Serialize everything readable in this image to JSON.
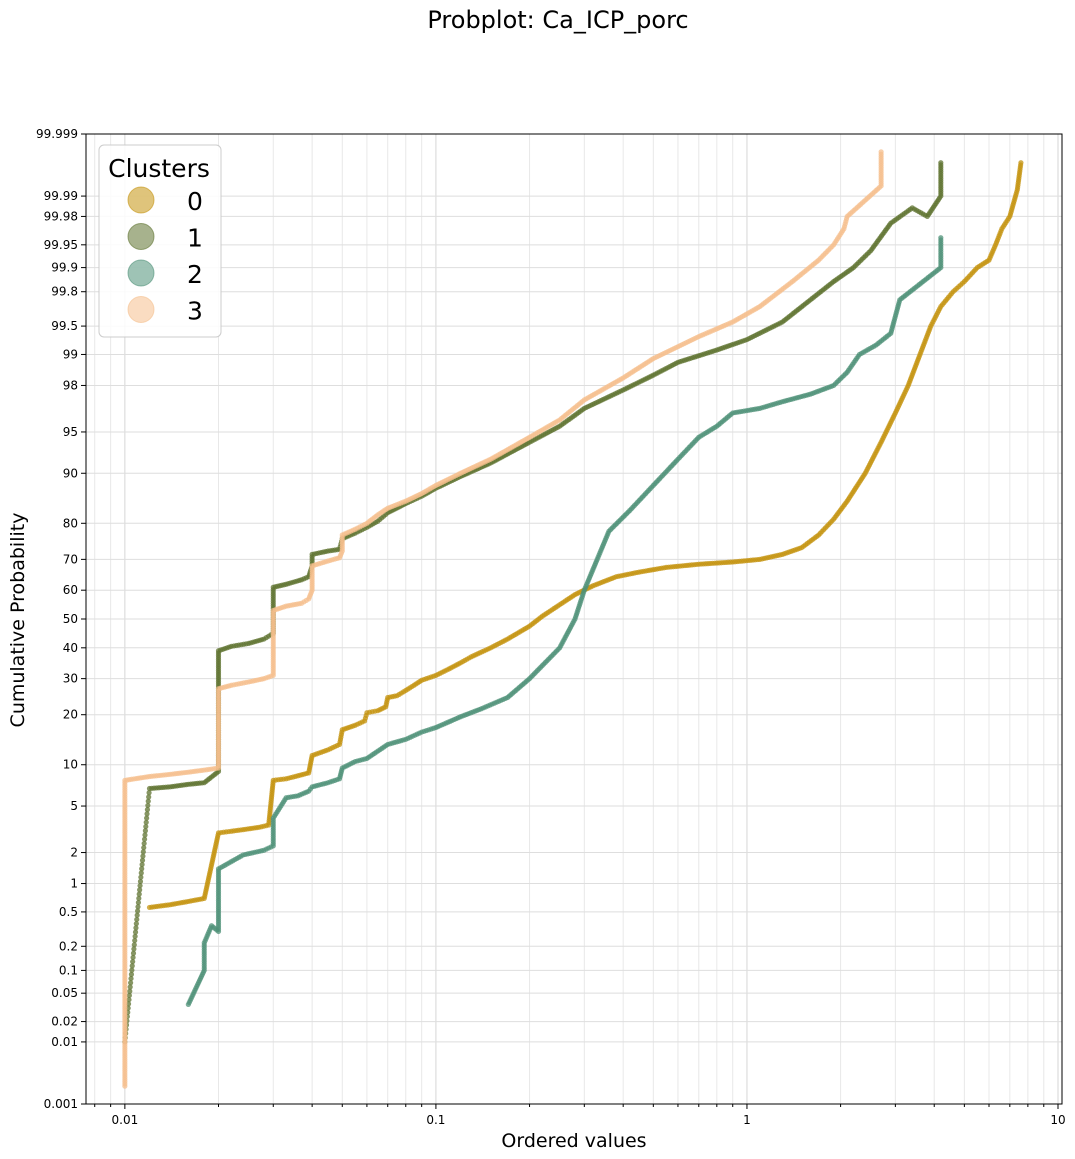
{
  "chart_data": {
    "type": "scatter",
    "title": "Probplot: Ca_ICP_porc",
    "xlabel": "Ordered values",
    "ylabel": "Cumulative Probability",
    "x_scale": "log",
    "y_scale": "probability",
    "xlim": [
      0.0075,
      10.3
    ],
    "ylim": [
      0.001,
      99.999
    ],
    "x_ticks": [
      {
        "value": 0.01,
        "label": "0.01"
      },
      {
        "value": 0.1,
        "label": "0.1"
      },
      {
        "value": 1,
        "label": "1"
      },
      {
        "value": 10,
        "label": "10"
      }
    ],
    "y_ticks": [
      {
        "value": 0.001,
        "label": "0.001"
      },
      {
        "value": 0.01,
        "label": "0.01"
      },
      {
        "value": 0.02,
        "label": "0.02"
      },
      {
        "value": 0.05,
        "label": "0.05"
      },
      {
        "value": 0.1,
        "label": "0.1"
      },
      {
        "value": 0.2,
        "label": "0.2"
      },
      {
        "value": 0.5,
        "label": "0.5"
      },
      {
        "value": 1,
        "label": "1"
      },
      {
        "value": 2,
        "label": "2"
      },
      {
        "value": 5,
        "label": "5"
      },
      {
        "value": 10,
        "label": "10"
      },
      {
        "value": 20,
        "label": "20"
      },
      {
        "value": 30,
        "label": "30"
      },
      {
        "value": 40,
        "label": "40"
      },
      {
        "value": 50,
        "label": "50"
      },
      {
        "value": 60,
        "label": "60"
      },
      {
        "value": 70,
        "label": "70"
      },
      {
        "value": 80,
        "label": "80"
      },
      {
        "value": 90,
        "label": "90"
      },
      {
        "value": 95,
        "label": "95"
      },
      {
        "value": 98,
        "label": "98"
      },
      {
        "value": 99,
        "label": "99"
      },
      {
        "value": 99.5,
        "label": "99.5"
      },
      {
        "value": 99.8,
        "label": "99.8"
      },
      {
        "value": 99.9,
        "label": "99.9"
      },
      {
        "value": 99.95,
        "label": "99.95"
      },
      {
        "value": 99.98,
        "label": "99.98"
      },
      {
        "value": 99.99,
        "label": "99.99"
      },
      {
        "value": 99.999,
        "label": "99.999"
      }
    ],
    "grid": true,
    "legend": {
      "title": "Clusters",
      "position": "top-left"
    },
    "series": [
      {
        "name": "0",
        "color": "#c4930f",
        "points": [
          [
            0.012,
            0.56
          ],
          [
            0.014,
            0.6
          ],
          [
            0.016,
            0.65
          ],
          [
            0.018,
            0.7
          ],
          [
            0.02,
            3.0
          ],
          [
            0.022,
            3.1
          ],
          [
            0.024,
            3.2
          ],
          [
            0.027,
            3.35
          ],
          [
            0.029,
            3.5
          ],
          [
            0.03,
            7.8
          ],
          [
            0.033,
            8.0
          ],
          [
            0.036,
            8.4
          ],
          [
            0.039,
            8.8
          ],
          [
            0.04,
            11.5
          ],
          [
            0.045,
            12.5
          ],
          [
            0.049,
            13.5
          ],
          [
            0.05,
            16.5
          ],
          [
            0.055,
            17.5
          ],
          [
            0.059,
            18.5
          ],
          [
            0.06,
            20.5
          ],
          [
            0.065,
            21.0
          ],
          [
            0.069,
            22.0
          ],
          [
            0.07,
            24.5
          ],
          [
            0.075,
            25.0
          ],
          [
            0.08,
            26.5
          ],
          [
            0.085,
            28.0
          ],
          [
            0.09,
            29.5
          ],
          [
            0.1,
            31.0
          ],
          [
            0.11,
            33.0
          ],
          [
            0.12,
            35.0
          ],
          [
            0.13,
            37.0
          ],
          [
            0.15,
            40.0
          ],
          [
            0.17,
            43.0
          ],
          [
            0.2,
            47.5
          ],
          [
            0.22,
            51.0
          ],
          [
            0.25,
            55.0
          ],
          [
            0.28,
            58.5
          ],
          [
            0.32,
            61.5
          ],
          [
            0.38,
            64.5
          ],
          [
            0.45,
            66.0
          ],
          [
            0.55,
            67.5
          ],
          [
            0.7,
            68.5
          ],
          [
            0.9,
            69.2
          ],
          [
            1.1,
            70.0
          ],
          [
            1.3,
            71.5
          ],
          [
            1.5,
            73.5
          ],
          [
            1.7,
            77.0
          ],
          [
            1.9,
            81.0
          ],
          [
            2.1,
            85.0
          ],
          [
            2.4,
            90.0
          ],
          [
            2.7,
            94.0
          ],
          [
            3.0,
            96.5
          ],
          [
            3.3,
            98.0
          ],
          [
            3.6,
            99.0
          ],
          [
            3.9,
            99.5
          ],
          [
            4.2,
            99.7
          ],
          [
            4.6,
            99.8
          ],
          [
            5.0,
            99.85
          ],
          [
            5.5,
            99.9
          ],
          [
            6.0,
            99.92
          ],
          [
            6.3,
            99.95
          ],
          [
            6.6,
            99.97
          ],
          [
            7.0,
            99.98
          ],
          [
            7.4,
            99.992
          ],
          [
            7.6,
            99.997
          ]
        ]
      },
      {
        "name": "1",
        "color": "#5f7330",
        "points": [
          [
            0.01,
            0.01
          ],
          [
            0.012,
            6.8
          ],
          [
            0.014,
            7.0
          ],
          [
            0.016,
            7.3
          ],
          [
            0.018,
            7.5
          ],
          [
            0.02,
            9.0
          ],
          [
            0.02,
            20.0
          ],
          [
            0.02,
            39.0
          ],
          [
            0.022,
            40.5
          ],
          [
            0.025,
            41.5
          ],
          [
            0.028,
            43.0
          ],
          [
            0.03,
            45.0
          ],
          [
            0.03,
            53.0
          ],
          [
            0.03,
            61.0
          ],
          [
            0.033,
            62.0
          ],
          [
            0.037,
            63.5
          ],
          [
            0.039,
            64.5
          ],
          [
            0.04,
            68.0
          ],
          [
            0.04,
            71.5
          ],
          [
            0.045,
            72.5
          ],
          [
            0.049,
            73.0
          ],
          [
            0.05,
            76.0
          ],
          [
            0.055,
            77.5
          ],
          [
            0.06,
            79.0
          ],
          [
            0.065,
            80.5
          ],
          [
            0.07,
            82.5
          ],
          [
            0.08,
            84.5
          ],
          [
            0.09,
            86.0
          ],
          [
            0.1,
            87.5
          ],
          [
            0.12,
            89.5
          ],
          [
            0.15,
            91.5
          ],
          [
            0.2,
            94.0
          ],
          [
            0.25,
            95.5
          ],
          [
            0.3,
            96.8
          ],
          [
            0.4,
            97.8
          ],
          [
            0.5,
            98.4
          ],
          [
            0.6,
            98.8
          ],
          [
            0.8,
            99.1
          ],
          [
            1.0,
            99.3
          ],
          [
            1.3,
            99.55
          ],
          [
            1.6,
            99.75
          ],
          [
            1.9,
            99.85
          ],
          [
            2.2,
            99.9
          ],
          [
            2.5,
            99.94
          ],
          [
            2.9,
            99.975
          ],
          [
            3.4,
            99.985
          ],
          [
            3.8,
            99.98
          ],
          [
            4.2,
            99.99
          ],
          [
            4.2,
            99.997
          ]
        ]
      },
      {
        "name": "2",
        "color": "#4f9178",
        "points": [
          [
            0.016,
            0.035
          ],
          [
            0.018,
            0.1
          ],
          [
            0.018,
            0.16
          ],
          [
            0.018,
            0.22
          ],
          [
            0.019,
            0.35
          ],
          [
            0.02,
            0.3
          ],
          [
            0.02,
            0.7
          ],
          [
            0.02,
            1.4
          ],
          [
            0.024,
            1.9
          ],
          [
            0.028,
            2.1
          ],
          [
            0.03,
            2.3
          ],
          [
            0.03,
            4.0
          ],
          [
            0.033,
            5.8
          ],
          [
            0.036,
            6.0
          ],
          [
            0.039,
            6.5
          ],
          [
            0.04,
            7.0
          ],
          [
            0.045,
            7.5
          ],
          [
            0.049,
            8.0
          ],
          [
            0.05,
            9.5
          ],
          [
            0.055,
            10.5
          ],
          [
            0.06,
            11.0
          ],
          [
            0.07,
            13.5
          ],
          [
            0.08,
            14.5
          ],
          [
            0.09,
            16.0
          ],
          [
            0.1,
            17.0
          ],
          [
            0.12,
            19.5
          ],
          [
            0.14,
            21.5
          ],
          [
            0.17,
            24.5
          ],
          [
            0.2,
            30.0
          ],
          [
            0.25,
            40.0
          ],
          [
            0.28,
            50.0
          ],
          [
            0.3,
            60.0
          ],
          [
            0.33,
            70.0
          ],
          [
            0.36,
            78.0
          ],
          [
            0.42,
            83.0
          ],
          [
            0.5,
            88.0
          ],
          [
            0.6,
            92.0
          ],
          [
            0.7,
            94.5
          ],
          [
            0.8,
            95.5
          ],
          [
            0.9,
            96.5
          ],
          [
            1.1,
            96.8
          ],
          [
            1.3,
            97.2
          ],
          [
            1.6,
            97.6
          ],
          [
            1.9,
            98.0
          ],
          [
            2.1,
            98.5
          ],
          [
            2.3,
            99.0
          ],
          [
            2.6,
            99.2
          ],
          [
            2.9,
            99.4
          ],
          [
            3.1,
            99.75
          ],
          [
            4.2,
            99.9
          ],
          [
            4.2,
            99.96
          ]
        ]
      },
      {
        "name": "3",
        "color": "#f5bf8e",
        "points": [
          [
            0.01,
            0.002
          ],
          [
            0.01,
            0.05
          ],
          [
            0.01,
            0.5
          ],
          [
            0.01,
            2.0
          ],
          [
            0.01,
            5.0
          ],
          [
            0.01,
            7.8
          ],
          [
            0.012,
            8.3
          ],
          [
            0.014,
            8.6
          ],
          [
            0.016,
            8.9
          ],
          [
            0.018,
            9.2
          ],
          [
            0.02,
            9.5
          ],
          [
            0.02,
            20.0
          ],
          [
            0.02,
            27.0
          ],
          [
            0.022,
            28.0
          ],
          [
            0.025,
            29.0
          ],
          [
            0.028,
            30.0
          ],
          [
            0.03,
            31.0
          ],
          [
            0.03,
            42.0
          ],
          [
            0.03,
            53.0
          ],
          [
            0.033,
            54.5
          ],
          [
            0.037,
            55.5
          ],
          [
            0.039,
            57.0
          ],
          [
            0.04,
            60.0
          ],
          [
            0.04,
            68.0
          ],
          [
            0.045,
            69.5
          ],
          [
            0.049,
            70.5
          ],
          [
            0.05,
            72.5
          ],
          [
            0.05,
            77.0
          ],
          [
            0.055,
            78.5
          ],
          [
            0.06,
            80.0
          ],
          [
            0.065,
            82.0
          ],
          [
            0.07,
            83.5
          ],
          [
            0.08,
            85.0
          ],
          [
            0.09,
            86.5
          ],
          [
            0.1,
            88.0
          ],
          [
            0.12,
            90.0
          ],
          [
            0.15,
            92.0
          ],
          [
            0.2,
            94.5
          ],
          [
            0.25,
            96.0
          ],
          [
            0.3,
            97.3
          ],
          [
            0.4,
            98.3
          ],
          [
            0.5,
            98.9
          ],
          [
            0.7,
            99.35
          ],
          [
            0.9,
            99.55
          ],
          [
            1.1,
            99.7
          ],
          [
            1.4,
            99.85
          ],
          [
            1.7,
            99.92
          ],
          [
            1.9,
            99.95
          ],
          [
            2.05,
            99.97
          ],
          [
            2.1,
            99.98
          ],
          [
            2.7,
            99.993
          ],
          [
            2.7,
            99.998
          ]
        ]
      }
    ]
  }
}
